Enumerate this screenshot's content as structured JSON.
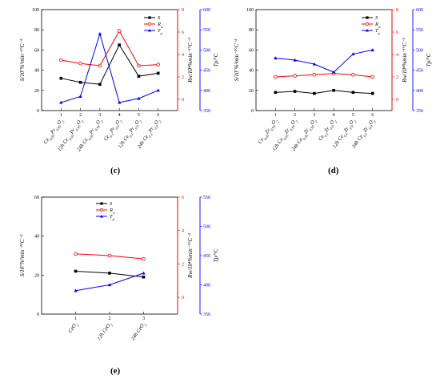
{
  "colors": {
    "S": "#000000",
    "Rw": "#ff0000",
    "Tp": "#0000ff"
  },
  "axis_labels": {
    "left": "S/10⁷%²min⁻²°C⁻³",
    "rw": "Rw/10⁴%min⁻¹°C⁻²",
    "tp": "Tp/°C"
  },
  "chart_data": [
    {
      "type": "line",
      "panel": "(c)",
      "x": [
        1,
        2,
        3,
        4,
        5,
        6
      ],
      "categories": [
        "Ce0.05Pr0.95O2",
        "12h Ce0.05Pr0.95O2",
        "24h Ce0.05Pr0.95O2",
        "Ce0.1Pr0.9O2",
        "12h Ce0.1Pr0.9O2",
        "24h Ce0.1Pr0.9O2"
      ],
      "series": [
        {
          "name": "S",
          "axis": "left",
          "values": [
            32,
            28,
            26,
            65,
            34,
            37
          ]
        },
        {
          "name": "Rw",
          "axis": "rw",
          "values": [
            3.5,
            3.2,
            3.0,
            6.1,
            3.0,
            3.1
          ]
        },
        {
          "name": "Tp",
          "axis": "tp",
          "values": [
            370,
            385,
            540,
            370,
            380,
            400
          ]
        }
      ],
      "ylim_left": [
        0,
        100
      ],
      "ylim_rw": [
        -1,
        8
      ],
      "ylim_tp": [
        350,
        600
      ],
      "ticks_left": [
        0,
        20,
        40,
        60,
        80,
        100
      ],
      "ticks_rw": [
        0,
        2,
        4,
        6,
        8
      ],
      "ticks_tp": [
        350,
        400,
        450,
        500,
        550,
        600
      ]
    },
    {
      "type": "line",
      "panel": "(d)",
      "x": [
        1,
        2,
        3,
        4,
        5,
        6
      ],
      "categories": [
        "Ce0.05Zr0.95O2",
        "12h Ce0.05Zr0.95O2",
        "24h Ce0.05Zr0.95O2",
        "Ce0.1Zr0.9O2",
        "12h Ce0.1Zr0.9O2",
        "24h Ce0.1Zr0.9O2"
      ],
      "series": [
        {
          "name": "S",
          "axis": "left",
          "values": [
            18,
            19,
            17,
            20,
            18,
            17
          ]
        },
        {
          "name": "Rw",
          "axis": "rw",
          "values": [
            2.0,
            2.1,
            2.2,
            2.3,
            2.2,
            2.0
          ]
        },
        {
          "name": "Tp",
          "axis": "tp",
          "values": [
            480,
            475,
            465,
            445,
            490,
            500
          ]
        }
      ],
      "ylim_left": [
        0,
        100
      ],
      "ylim_rw": [
        -1,
        8
      ],
      "ylim_tp": [
        350,
        600
      ],
      "ticks_left": [
        0,
        20,
        40,
        60,
        80,
        100
      ],
      "ticks_rw": [
        0,
        2,
        4,
        6,
        8
      ],
      "ticks_tp": [
        350,
        400,
        450,
        500,
        550,
        600
      ]
    },
    {
      "type": "line",
      "panel": "(e)",
      "x": [
        1,
        2,
        3
      ],
      "categories": [
        "CeO2",
        "12h CeO2",
        "24h CeO2"
      ],
      "series": [
        {
          "name": "S",
          "axis": "left",
          "values": [
            22,
            21,
            19
          ]
        },
        {
          "name": "Rw",
          "axis": "rw",
          "values": [
            2.6,
            2.5,
            2.3
          ]
        },
        {
          "name": "Tp",
          "axis": "tp",
          "values": [
            390,
            400,
            420
          ]
        }
      ],
      "ylim_left": [
        0,
        60
      ],
      "ylim_rw": [
        -1,
        6
      ],
      "ylim_tp": [
        350,
        550
      ],
      "ticks_left": [
        0,
        20,
        40,
        60
      ],
      "ticks_rw": [
        0,
        2,
        4,
        6
      ],
      "ticks_tp": [
        350,
        400,
        450,
        500,
        550
      ]
    }
  ]
}
